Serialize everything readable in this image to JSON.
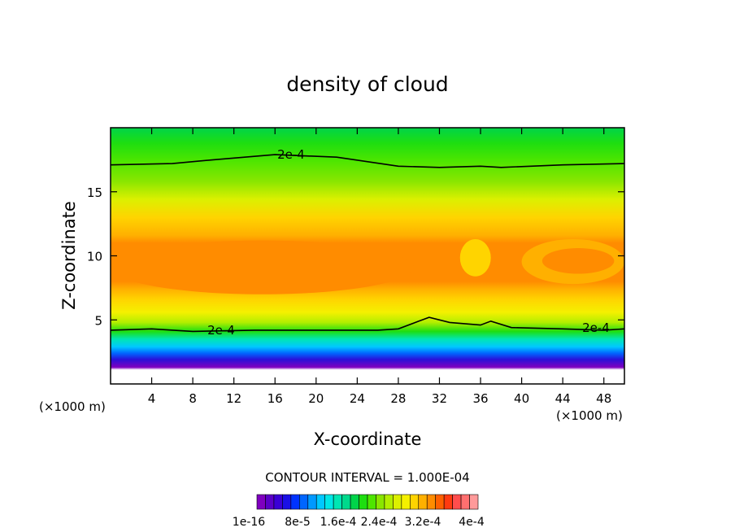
{
  "chart_data": {
    "type": "heatmap",
    "title": "density of cloud",
    "xlabel": "X-coordinate",
    "ylabel": "Z-coordinate",
    "x_unit": "(×1000 m)",
    "x_unit_right": "(×1000 m)",
    "xlim": [
      0,
      50
    ],
    "ylim": [
      0,
      20
    ],
    "xticks": [
      "4",
      "8",
      "12",
      "16",
      "20",
      "24",
      "28",
      "32",
      "36",
      "40",
      "44",
      "48"
    ],
    "yticks": [
      "5",
      "10",
      "15"
    ],
    "contour_interval_text": "CONTOUR INTERVAL = 1.000E-04",
    "contour_level_label": "2e-4",
    "colorbar": {
      "labels": [
        "1e-16",
        "8e-5",
        "1.6e-4",
        "2.4e-4",
        "3.2e-4",
        "4e-4"
      ],
      "colors": [
        "#7f00bf",
        "#5a00c8",
        "#3a00d6",
        "#1a10e6",
        "#0033ff",
        "#0066ff",
        "#0099ff",
        "#00c8ff",
        "#00e6e6",
        "#00e6b3",
        "#00d98c",
        "#00d44a",
        "#1ede10",
        "#4ee600",
        "#8ae600",
        "#b3ee00",
        "#dcf000",
        "#f5f000",
        "#ffd400",
        "#ffb000",
        "#ff8c00",
        "#ff6000",
        "#ff3a10",
        "#ff4d4d",
        "#ff6f6f",
        "#ff9a9a"
      ]
    },
    "field_stops": [
      {
        "z": 0.0,
        "color": "#ffffff"
      },
      {
        "z": 1.1,
        "color": "#ffffff"
      },
      {
        "z": 1.3,
        "color": "#7f00bf"
      },
      {
        "z": 1.9,
        "color": "#2a10d8"
      },
      {
        "z": 2.4,
        "color": "#0066ff"
      },
      {
        "z": 2.9,
        "color": "#00c8ff"
      },
      {
        "z": 3.5,
        "color": "#00e6b3"
      },
      {
        "z": 4.1,
        "color": "#1ede10"
      },
      {
        "z": 4.8,
        "color": "#b3ee00"
      },
      {
        "z": 5.6,
        "color": "#f5f000"
      },
      {
        "z": 6.6,
        "color": "#ffd400"
      },
      {
        "z": 7.4,
        "color": "#ffb000"
      },
      {
        "z": 8.0,
        "color": "#ff8c00"
      },
      {
        "z": 11.0,
        "color": "#ff8c00"
      },
      {
        "z": 11.6,
        "color": "#ffb000"
      },
      {
        "z": 13.0,
        "color": "#ffd400"
      },
      {
        "z": 14.4,
        "color": "#dcf000"
      },
      {
        "z": 15.8,
        "color": "#8ae600"
      },
      {
        "z": 17.4,
        "color": "#4ee600"
      },
      {
        "z": 18.8,
        "color": "#1ede10"
      },
      {
        "z": 20.0,
        "color": "#00d44a"
      }
    ],
    "cloud_patches": [
      {
        "x_range": [
          0,
          29.5
        ],
        "z_range": [
          7.0,
          11.2
        ],
        "color": "#ff8c00"
      },
      {
        "x_range": [
          34.0,
          37.0
        ],
        "z_range": [
          8.4,
          11.3
        ],
        "color": "#ffd400"
      },
      {
        "x_range": [
          40.0,
          50.0
        ],
        "z_range": [
          7.8,
          11.3
        ],
        "color": "#ffb000"
      },
      {
        "x_range": [
          42.0,
          49.0
        ],
        "z_range": [
          8.6,
          10.6
        ],
        "color": "#ff8c00"
      }
    ],
    "contour_2e4_upper": [
      [
        0,
        17.1
      ],
      [
        6,
        17.2
      ],
      [
        10,
        17.5
      ],
      [
        16,
        17.9
      ],
      [
        22,
        17.7
      ],
      [
        28,
        17.0
      ],
      [
        32,
        16.9
      ],
      [
        36,
        17.0
      ],
      [
        38,
        16.9
      ],
      [
        44,
        17.1
      ],
      [
        50,
        17.2
      ]
    ],
    "contour_2e4_lower": [
      [
        0,
        4.2
      ],
      [
        4,
        4.3
      ],
      [
        8,
        4.1
      ],
      [
        14,
        4.2
      ],
      [
        20,
        4.2
      ],
      [
        26,
        4.2
      ],
      [
        28,
        4.3
      ],
      [
        30,
        4.9
      ],
      [
        31,
        5.2
      ],
      [
        33,
        4.8
      ],
      [
        36,
        4.6
      ],
      [
        37,
        4.9
      ],
      [
        39,
        4.4
      ],
      [
        44,
        4.3
      ],
      [
        48,
        4.2
      ],
      [
        50,
        4.3
      ]
    ]
  }
}
